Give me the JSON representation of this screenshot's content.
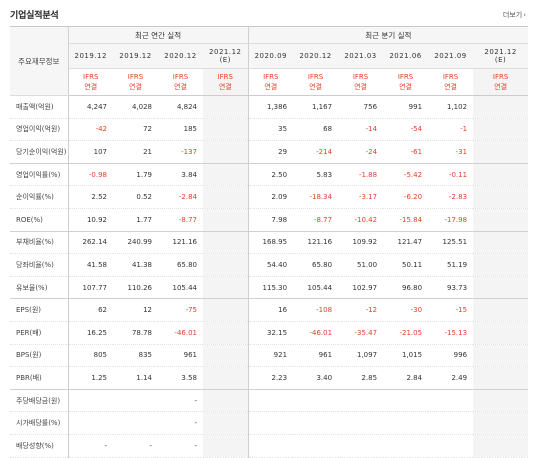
{
  "title": "기업실적분석",
  "more_label": "더보기",
  "header": {
    "key_label": "주요재무정보",
    "annual_label": "최근 연간 실적",
    "quarterly_label": "최근 분기 실적",
    "periods": [
      "2019.12",
      "2019.12",
      "2020.12",
      "2021.12",
      "2020.09",
      "2020.12",
      "2021.03",
      "2021.06",
      "2021.09",
      "2021.12"
    ],
    "estimate_mark": "(E)",
    "ifrs_top": "IFRS",
    "ifrs_bottom": "연결"
  },
  "rows": [
    {
      "label": "매출액(억원)",
      "values": [
        "4,247",
        "4,028",
        "4,824",
        "",
        "1,386",
        "1,167",
        "756",
        "991",
        "1,102",
        ""
      ]
    },
    {
      "label": "영업이익(억원)",
      "values": [
        "-42",
        "72",
        "185",
        "",
        "35",
        "68",
        "-14",
        "-54",
        "-1",
        ""
      ]
    },
    {
      "label": "당기순이익(억원)",
      "values": [
        "107",
        "21",
        "-137",
        "",
        "29",
        "-214",
        "-24",
        "-61",
        "-31",
        ""
      ]
    },
    {
      "label": "영업이익률(%)",
      "values": [
        "-0.98",
        "1.79",
        "3.84",
        "",
        "2.50",
        "5.83",
        "-1.88",
        "-5.42",
        "-0.11",
        ""
      ]
    },
    {
      "label": "순이익률(%)",
      "values": [
        "2.52",
        "0.52",
        "-2.84",
        "",
        "2.09",
        "-18.34",
        "-3.17",
        "-6.20",
        "-2.83",
        ""
      ]
    },
    {
      "label": "ROE(%)",
      "values": [
        "10.92",
        "1.77",
        "-8.77",
        "",
        "7.98",
        "-8.77",
        "-10.42",
        "-15.84",
        "-17.98",
        ""
      ]
    },
    {
      "label": "부채비율(%)",
      "values": [
        "262.14",
        "240.99",
        "121.16",
        "",
        "168.95",
        "121.16",
        "109.92",
        "121.47",
        "125.51",
        ""
      ]
    },
    {
      "label": "당좌비율(%)",
      "values": [
        "41.58",
        "41.38",
        "65.80",
        "",
        "54.40",
        "65.80",
        "51.00",
        "50.11",
        "51.19",
        ""
      ]
    },
    {
      "label": "유보율(%)",
      "values": [
        "107.77",
        "110.26",
        "105.44",
        "",
        "115.30",
        "105.44",
        "102.97",
        "96.80",
        "93.73",
        ""
      ]
    },
    {
      "label": "EPS(원)",
      "values": [
        "62",
        "12",
        "-75",
        "",
        "16",
        "-108",
        "-12",
        "-30",
        "-15",
        ""
      ]
    },
    {
      "label": "PER(배)",
      "values": [
        "16.25",
        "78.78",
        "-46.01",
        "",
        "32.15",
        "-46.01",
        "-35.47",
        "-21.05",
        "-15.13",
        ""
      ]
    },
    {
      "label": "BPS(원)",
      "values": [
        "805",
        "835",
        "961",
        "",
        "921",
        "961",
        "1,097",
        "1,015",
        "996",
        ""
      ]
    },
    {
      "label": "PBR(배)",
      "values": [
        "1.25",
        "1.14",
        "3.58",
        "",
        "2.23",
        "3.40",
        "2.85",
        "2.84",
        "2.49",
        ""
      ]
    },
    {
      "label": "주당배당금(원)",
      "values": [
        "",
        "",
        "-",
        "",
        "",
        "",
        "",
        "",
        "",
        ""
      ]
    },
    {
      "label": "시가배당률(%)",
      "values": [
        "",
        "",
        "-",
        "",
        "",
        "",
        "",
        "",
        "",
        ""
      ]
    },
    {
      "label": "배당성향(%)",
      "values": [
        "-",
        "-",
        "-",
        "",
        "",
        "",
        "",
        "",
        "",
        ""
      ]
    }
  ],
  "colors": {
    "negative": "#e0412d",
    "ifrs": "#e0412d",
    "header_bg": "#f6f6f6"
  }
}
